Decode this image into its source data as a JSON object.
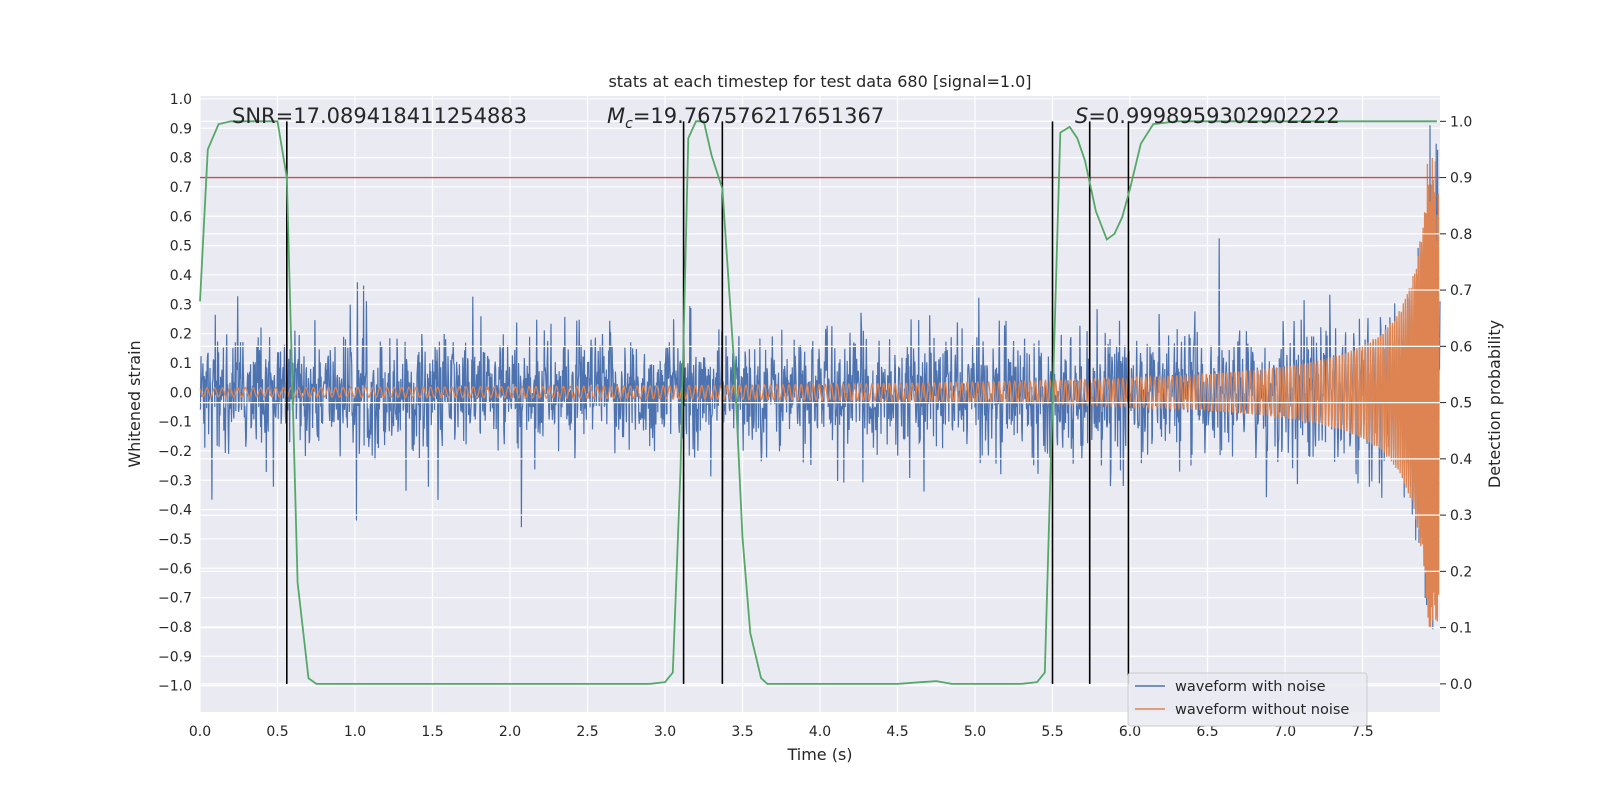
{
  "chart_data": {
    "type": "line",
    "title": "stats at each timestep for test data 680 [signal=1.0]",
    "xlabel": "Time (s)",
    "ylabel_left": "Whitened strain",
    "ylabel_right": "Detection probability",
    "xlim": [
      0,
      8
    ],
    "ylim_left": [
      -1.09,
      1.01
    ],
    "ylim_right": [
      -0.05,
      1.045
    ],
    "x_ticks": [
      0.0,
      0.5,
      1.0,
      1.5,
      2.0,
      2.5,
      3.0,
      3.5,
      4.0,
      4.5,
      5.0,
      5.5,
      6.0,
      6.5,
      7.0,
      7.5
    ],
    "x_tick_labels": [
      "0.0",
      "0.5",
      "1.0",
      "1.5",
      "2.0",
      "2.5",
      "3.0",
      "3.5",
      "4.0",
      "4.5",
      "5.0",
      "5.5",
      "6.0",
      "6.5",
      "7.0",
      "7.5"
    ],
    "y_left_ticks": [
      1.0,
      0.9,
      0.8,
      0.7,
      0.6,
      0.5,
      0.4,
      0.3,
      0.2,
      0.1,
      0.0,
      -0.1,
      -0.2,
      -0.3,
      -0.4,
      -0.5,
      -0.6,
      -0.7,
      -0.8,
      -0.9,
      -1.0
    ],
    "y_left_tick_labels": [
      "1.0",
      "0.9",
      "0.8",
      "0.7",
      "0.6",
      "0.5",
      "0.4",
      "0.3",
      "0.2",
      "0.1",
      "0.0",
      "−0.1",
      "−0.2",
      "−0.3",
      "−0.4",
      "−0.5",
      "−0.6",
      "−0.7",
      "−0.8",
      "−0.9",
      "−1.0"
    ],
    "y_right_ticks": [
      1.0,
      0.9,
      0.8,
      0.7,
      0.6,
      0.5,
      0.4,
      0.3,
      0.2,
      0.1,
      0.0
    ],
    "y_right_tick_labels": [
      "1.0",
      "0.9",
      "0.8",
      "0.7",
      "0.6",
      "0.5",
      "0.4",
      "0.3",
      "0.2",
      "0.1",
      "0.0"
    ],
    "annotations": {
      "snr": "SNR=17.089418411254883",
      "mc_symbol": "M",
      "mc_sub": "c",
      "mc_value": "=19.767576217651367",
      "s_symbol": "S",
      "s_value": "=0.9998959302902222"
    },
    "threshold": {
      "axis": "right",
      "value": 0.9,
      "color": "#c44e52"
    },
    "vertical_markers": [
      0.56,
      3.12,
      3.37,
      5.5,
      5.74,
      5.99
    ],
    "legend": {
      "position": "lower right",
      "entries": [
        {
          "label": "waveform with noise",
          "color": "#4c72b0"
        },
        {
          "label": "waveform without noise",
          "color": "#dd8452"
        }
      ]
    },
    "series": [
      {
        "name": "waveform with noise",
        "axis": "left",
        "color": "#4c72b0",
        "kind": "noisy_strain",
        "approx_range": [
          -1.0,
          0.91
        ],
        "typical_amplitude": 0.25
      },
      {
        "name": "waveform without noise",
        "axis": "left",
        "color": "#dd8452",
        "kind": "chirp",
        "approx_envelope_start": 0.015,
        "approx_peak": 0.8
      },
      {
        "name": "detection probability",
        "axis": "right",
        "color": "#55a868",
        "x": [
          0.0,
          0.05,
          0.12,
          0.2,
          0.3,
          0.5,
          0.56,
          0.63,
          0.7,
          0.75,
          1.0,
          2.0,
          2.9,
          3.0,
          3.05,
          3.1,
          3.15,
          3.2,
          3.25,
          3.3,
          3.37,
          3.45,
          3.5,
          3.55,
          3.62,
          3.66,
          3.75,
          4.0,
          4.5,
          4.65,
          4.75,
          4.85,
          5.0,
          5.3,
          5.4,
          5.45,
          5.5,
          5.55,
          5.61,
          5.66,
          5.71,
          5.78,
          5.85,
          5.9,
          5.95,
          6.0,
          6.07,
          6.15,
          6.3,
          7.0,
          7.6,
          7.98
        ],
        "y": [
          0.68,
          0.95,
          0.995,
          1.0,
          1.0,
          1.0,
          0.9,
          0.18,
          0.01,
          0.0,
          0.0,
          0.0,
          0.0,
          0.003,
          0.02,
          0.38,
          0.97,
          1.0,
          1.0,
          0.94,
          0.88,
          0.55,
          0.26,
          0.09,
          0.01,
          0.0,
          0.0,
          0.0,
          0.0,
          0.003,
          0.005,
          0.0,
          0.0,
          0.0,
          0.003,
          0.02,
          0.5,
          0.98,
          0.99,
          0.97,
          0.93,
          0.84,
          0.79,
          0.8,
          0.83,
          0.88,
          0.96,
          0.995,
          1.0,
          1.0,
          1.0,
          1.0
        ]
      }
    ]
  }
}
